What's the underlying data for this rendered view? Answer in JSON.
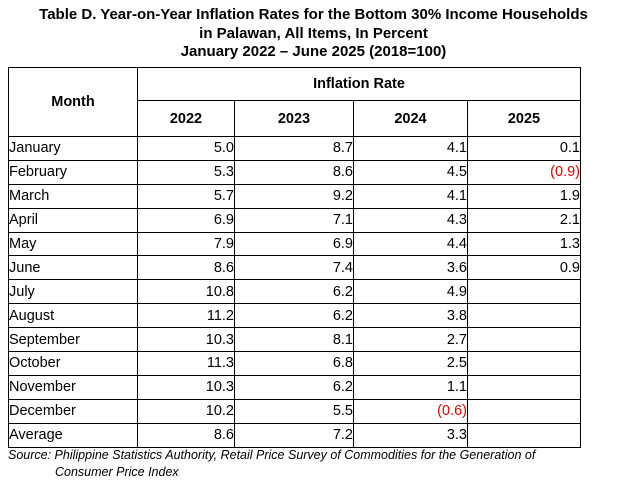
{
  "title": {
    "line1": "Table D. Year-on-Year Inflation Rates for the Bottom 30% Income Households",
    "line2": "in Palawan, All Items, In Percent",
    "line3": "January 2022 – June 2025 (2018=100)"
  },
  "table": {
    "month_header": "Month",
    "group_header": "Inflation Rate",
    "years": [
      "2022",
      "2023",
      "2024",
      "2025"
    ],
    "rows": [
      {
        "month": "January",
        "values": [
          "5.0",
          "8.7",
          "4.1",
          "0.1"
        ]
      },
      {
        "month": "February",
        "values": [
          "5.3",
          "8.6",
          "4.5",
          "(0.9)"
        ]
      },
      {
        "month": "March",
        "values": [
          "5.7",
          "9.2",
          "4.1",
          "1.9"
        ]
      },
      {
        "month": "April",
        "values": [
          "6.9",
          "7.1",
          "4.3",
          "2.1"
        ]
      },
      {
        "month": "May",
        "values": [
          "7.9",
          "6.9",
          "4.4",
          "1.3"
        ]
      },
      {
        "month": "June",
        "values": [
          "8.6",
          "7.4",
          "3.6",
          "0.9"
        ]
      },
      {
        "month": "July",
        "values": [
          "10.8",
          "6.2",
          "4.9",
          ""
        ]
      },
      {
        "month": "August",
        "values": [
          "11.2",
          "6.2",
          "3.8",
          ""
        ]
      },
      {
        "month": "September",
        "values": [
          "10.3",
          "8.1",
          "2.7",
          ""
        ]
      },
      {
        "month": "October",
        "values": [
          "11.3",
          "6.8",
          "2.5",
          ""
        ]
      },
      {
        "month": "November",
        "values": [
          "10.3",
          "6.2",
          "1.1",
          ""
        ]
      },
      {
        "month": "December",
        "values": [
          "10.2",
          "5.5",
          "(0.6)",
          ""
        ]
      },
      {
        "month": "Average",
        "values": [
          "8.6",
          "7.2",
          "3.3",
          ""
        ]
      }
    ],
    "negative_color": "#e00000"
  },
  "source": {
    "line1": "Source: Philippine Statistics Authority, Retail Price Survey of Commodities for the Generation of",
    "line2": "Consumer Price Index"
  }
}
